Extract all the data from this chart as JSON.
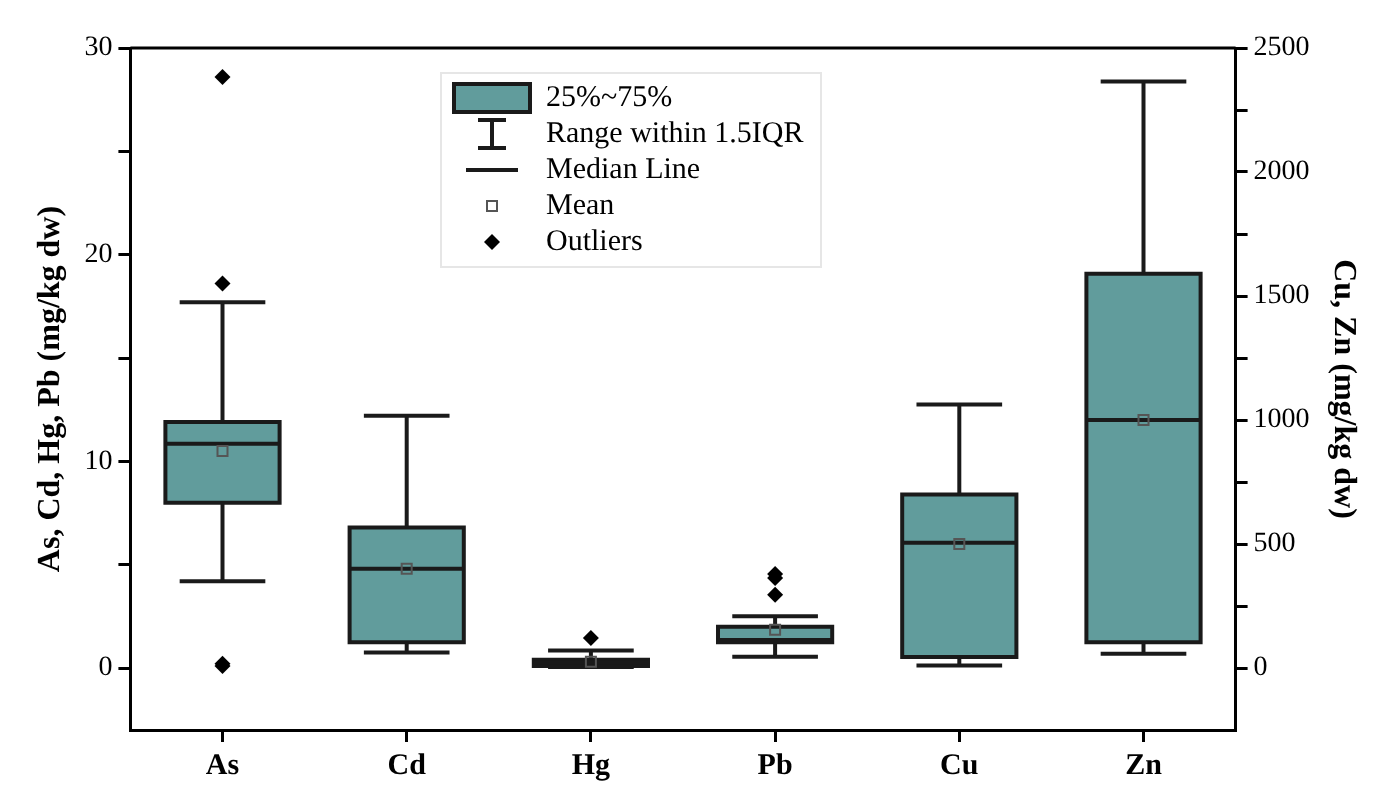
{
  "chart_data": {
    "type": "box",
    "categories": [
      "As",
      "Cd",
      "Hg",
      "Pb",
      "Cu",
      "Zn"
    ],
    "ylabel": "As, Cd, Hg, Pb (mg/kg dw)",
    "y2label": "Cu, Zn (mg/kg dw)",
    "ylim": [
      -3,
      30
    ],
    "yticks": [
      0,
      {
        "value": 5,
        "label": null
      },
      10,
      {
        "value": 15,
        "label": null
      },
      20,
      {
        "value": 25,
        "label": null
      },
      30
    ],
    "y2lim": [
      -250,
      2500
    ],
    "y2ticks": [
      0,
      {
        "value": 250,
        "label": null
      },
      500,
      {
        "value": 750,
        "label": null
      },
      1000,
      {
        "value": 1250,
        "label": null
      },
      1500,
      {
        "value": 1750,
        "label": null
      },
      2000,
      {
        "value": 2250,
        "label": null
      },
      2500
    ],
    "annotations": [
      "25%~75%",
      "Range within 1.5IQR",
      "Median Line",
      "Mean",
      "Outliers"
    ],
    "series": [
      {
        "color": "#619c9c",
        "boxes": [
          {
            "low": 4.2,
            "q1": 8.0,
            "median": 10.85,
            "q3": 11.9,
            "high": 17.7,
            "mean": 10.5,
            "outliers": [
              28.6,
              18.6,
              0.2,
              0.1
            ]
          },
          {
            "low": 0.75,
            "q1": 1.25,
            "median": 4.8,
            "q3": 6.8,
            "high": 12.2,
            "mean": 4.8
          },
          {
            "low": 0.05,
            "q1": 0.1,
            "median": 0.25,
            "q3": 0.4,
            "high": 0.85,
            "mean": 0.3,
            "outliers": [
              1.45
            ]
          },
          {
            "low": 0.55,
            "q1": 1.25,
            "median": 1.35,
            "q3": 2.0,
            "high": 2.5,
            "mean": 1.85,
            "outliers": [
              3.55,
              4.35,
              4.55
            ]
          },
          null,
          null
        ]
      },
      {
        "color": "#619c9c",
        "axis": "y2",
        "boxes": [
          null,
          null,
          null,
          null,
          {
            "low": 10,
            "q1": 44,
            "median": 505,
            "q3": 700,
            "high": 1062,
            "mean": 500
          },
          {
            "low": 57,
            "q1": 104,
            "median": 1000,
            "q3": 1590,
            "high": 2365,
            "mean": 1000
          }
        ]
      }
    ]
  }
}
